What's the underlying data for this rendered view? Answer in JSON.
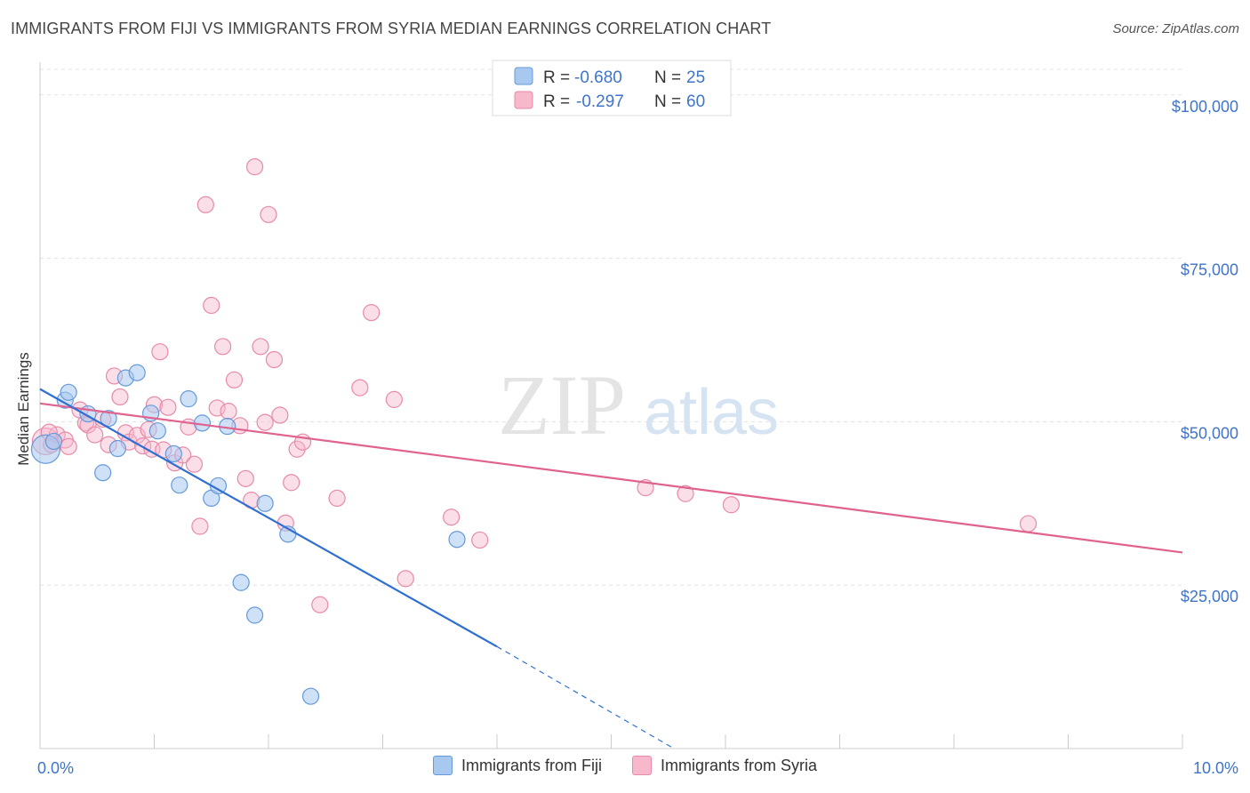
{
  "title": "IMMIGRANTS FROM FIJI VS IMMIGRANTS FROM SYRIA MEDIAN EARNINGS CORRELATION CHART",
  "source": "Source: ZipAtlas.com",
  "watermark": {
    "zip": "ZIP",
    "atlas": "atlas"
  },
  "colors": {
    "fiji_fill": "#a8c8f0",
    "fiji_stroke": "#6699d9",
    "fiji_line": "#2e6fd0",
    "syria_fill": "#f7b8cc",
    "syria_stroke": "#e88aa8",
    "syria_line": "#e0628f",
    "axis_text": "#3f74c9",
    "grid": "#dde3ea"
  },
  "legend_top": {
    "fiji": {
      "r_label": "R =",
      "r_value": "-0.680",
      "n_label": "N =",
      "n_value": "25"
    },
    "syria": {
      "r_label": "R =",
      "r_value": "-0.297",
      "n_label": "N =",
      "n_value": "60"
    }
  },
  "legend_bottom": {
    "fiji": "Immigrants from Fiji",
    "syria": "Immigrants from Syria"
  },
  "chart_data": {
    "type": "scatter",
    "title": "IMMIGRANTS FROM FIJI VS IMMIGRANTS FROM SYRIA MEDIAN EARNINGS CORRELATION CHART",
    "xlabel": "",
    "ylabel": "Median Earnings",
    "xlim": [
      0,
      10
    ],
    "ylim": [
      0,
      105000
    ],
    "x_tick_labels": [
      "0.0%",
      "10.0%"
    ],
    "y_ticks": [
      25000,
      50000,
      75000,
      100000
    ],
    "y_tick_labels": [
      "$25,000",
      "$50,000",
      "$75,000",
      "$100,000"
    ],
    "series": [
      {
        "name": "Immigrants from Fiji",
        "r": -0.68,
        "n": 25,
        "points": [
          [
            0.05,
            45800
          ],
          [
            0.12,
            47000
          ],
          [
            0.22,
            53300
          ],
          [
            0.25,
            54500
          ],
          [
            0.42,
            51200
          ],
          [
            0.55,
            42200
          ],
          [
            0.6,
            50500
          ],
          [
            0.68,
            45900
          ],
          [
            0.75,
            56700
          ],
          [
            0.85,
            57500
          ],
          [
            0.97,
            51300
          ],
          [
            1.03,
            48600
          ],
          [
            1.17,
            45100
          ],
          [
            1.22,
            40300
          ],
          [
            1.3,
            53500
          ],
          [
            1.42,
            49800
          ],
          [
            1.5,
            38300
          ],
          [
            1.56,
            40200
          ],
          [
            1.64,
            49300
          ],
          [
            1.76,
            25400
          ],
          [
            1.88,
            20400
          ],
          [
            1.97,
            37500
          ],
          [
            2.17,
            32800
          ],
          [
            2.37,
            8000
          ],
          [
            3.65,
            32000
          ]
        ],
        "trend": {
          "x0": 0.0,
          "y0": 55000,
          "x1": 4.0,
          "y1": 15600,
          "dash_x1": 5.55,
          "dash_y1": 0
        }
      },
      {
        "name": "Immigrants from Syria",
        "r": -0.297,
        "n": 60,
        "points": [
          [
            0.05,
            47000
          ],
          [
            0.1,
            46500
          ],
          [
            0.15,
            48000
          ],
          [
            0.22,
            47200
          ],
          [
            0.25,
            46200
          ],
          [
            0.35,
            51800
          ],
          [
            0.4,
            49800
          ],
          [
            0.42,
            49500
          ],
          [
            0.48,
            48000
          ],
          [
            0.55,
            50400
          ],
          [
            0.6,
            46500
          ],
          [
            0.65,
            57000
          ],
          [
            0.7,
            53800
          ],
          [
            0.75,
            48300
          ],
          [
            0.78,
            46900
          ],
          [
            0.85,
            47900
          ],
          [
            0.9,
            46300
          ],
          [
            0.95,
            48800
          ],
          [
            0.98,
            45800
          ],
          [
            1.0,
            52600
          ],
          [
            1.05,
            60700
          ],
          [
            1.08,
            45700
          ],
          [
            1.12,
            52200
          ],
          [
            1.18,
            43700
          ],
          [
            1.25,
            44900
          ],
          [
            1.3,
            49200
          ],
          [
            1.35,
            43500
          ],
          [
            1.4,
            34000
          ],
          [
            1.45,
            83200
          ],
          [
            1.5,
            67800
          ],
          [
            1.55,
            52100
          ],
          [
            1.6,
            61500
          ],
          [
            1.65,
            51600
          ],
          [
            1.7,
            56400
          ],
          [
            1.75,
            49400
          ],
          [
            1.8,
            41300
          ],
          [
            1.85,
            38000
          ],
          [
            1.88,
            89000
          ],
          [
            1.93,
            61500
          ],
          [
            1.97,
            49900
          ],
          [
            2.0,
            81700
          ],
          [
            2.05,
            59500
          ],
          [
            2.1,
            51000
          ],
          [
            2.15,
            34500
          ],
          [
            2.2,
            40700
          ],
          [
            2.25,
            45800
          ],
          [
            2.3,
            46900
          ],
          [
            2.45,
            22000
          ],
          [
            2.6,
            38300
          ],
          [
            2.8,
            55200
          ],
          [
            2.9,
            66700
          ],
          [
            3.1,
            53400
          ],
          [
            3.2,
            26000
          ],
          [
            3.6,
            35400
          ],
          [
            3.85,
            31900
          ],
          [
            5.3,
            39900
          ],
          [
            5.65,
            39000
          ],
          [
            6.05,
            37300
          ],
          [
            8.65,
            34400
          ],
          [
            0.08,
            48400
          ]
        ],
        "trend": {
          "x0": 0.0,
          "y0": 52800,
          "x1": 10.0,
          "y1": 30000
        }
      }
    ]
  }
}
